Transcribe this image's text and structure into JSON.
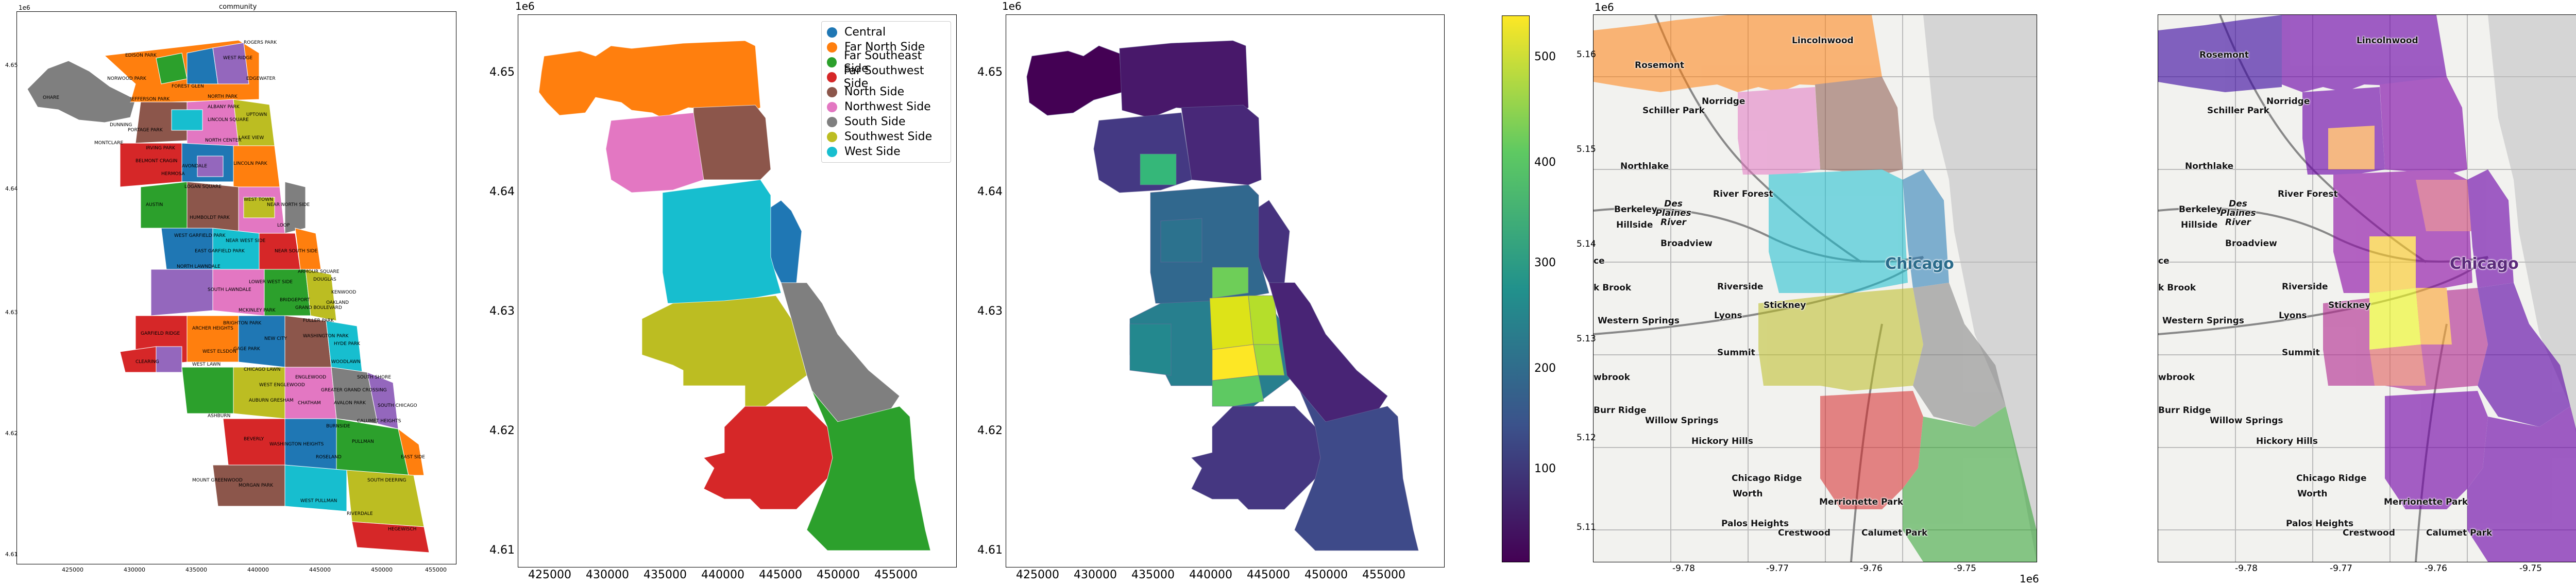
{
  "panel1": {
    "title": "community",
    "y_label": "1e6",
    "yticks": [
      "4.65",
      "4.64",
      "4.63",
      "4.62",
      "4.61"
    ],
    "xticks": [
      "425000",
      "430000",
      "435000",
      "440000",
      "445000",
      "450000",
      "455000"
    ],
    "areas": [
      "ROGERS PARK",
      "WEST RIDGE",
      "EDGEWATER",
      "UPTOWN",
      "LINCOLN SQUARE",
      "NORTH CENTER",
      "LAKE VIEW",
      "LINCOLN PARK",
      "NEAR NORTH SIDE",
      "LOOP",
      "NEAR SOUTH SIDE",
      "NEAR WEST SIDE",
      "WEST TOWN",
      "LOGAN SQUARE",
      "AVONDALE",
      "IRVING PARK",
      "PORTAGE PARK",
      "JEFFERSON PARK",
      "NORWOOD PARK",
      "EDISON PARK",
      "OHARE",
      "FOREST GLEN",
      "NORTH PARK",
      "ALBANY PARK",
      "DUNNING",
      "MONTCLARE",
      "BELMONT CRAGIN",
      "HERMOSA",
      "AUSTIN",
      "HUMBOLDT PARK",
      "WEST GARFIELD PARK",
      "EAST GARFIELD PARK",
      "NORTH LAWNDALE",
      "SOUTH LAWNDALE",
      "LOWER WEST SIDE",
      "BRIDGEPORT",
      "MCKINLEY PARK",
      "ARCHER HEIGHTS",
      "BRIGHTON PARK",
      "GAGE PARK",
      "NEW CITY",
      "FULLER PARK",
      "GRAND BOULEVARD",
      "OAKLAND",
      "KENWOOD",
      "WASHINGTON PARK",
      "HYDE PARK",
      "WOODLAWN",
      "SOUTH SHORE",
      "CHATHAM",
      "AVALON PARK",
      "SOUTH CHICAGO",
      "CALUMET HEIGHTS",
      "BURNSIDE",
      "ROSELAND",
      "PULLMAN",
      "SOUTH DEERING",
      "EAST SIDE",
      "WEST PULLMAN",
      "RIVERDALE",
      "HEGEWISCH",
      "ASHBURN",
      "AUBURN GRESHAM",
      "BEVERLY",
      "MOUNT GREENWOOD",
      "MORGAN PARK",
      "WASHINGTON HEIGHTS",
      "CLEARING",
      "GARFIELD RIDGE",
      "WEST LAWN",
      "CHICAGO LAWN",
      "WEST ENGLEWOOD",
      "ENGLEWOOD",
      "GREATER GRAND CROSSING",
      "ARMOUR SQUARE",
      "DOUGLAS",
      "WEST ELSDON"
    ]
  },
  "panel2": {
    "y_label": "1e6",
    "yticks": [
      "4.65",
      "4.64",
      "4.63",
      "4.62",
      "4.61"
    ],
    "xticks": [
      "425000",
      "430000",
      "435000",
      "440000",
      "445000",
      "450000",
      "455000"
    ],
    "legend": [
      {
        "label": "Central",
        "color": "#1f77b4"
      },
      {
        "label": "Far North Side",
        "color": "#ff7f0e"
      },
      {
        "label": "Far Southeast Side",
        "color": "#2ca02c"
      },
      {
        "label": "Far Southwest Side",
        "color": "#d62728"
      },
      {
        "label": "North Side",
        "color": "#8c564b"
      },
      {
        "label": "Northwest Side",
        "color": "#e377c2"
      },
      {
        "label": "South Side",
        "color": "#7f7f7f"
      },
      {
        "label": "Southwest Side",
        "color": "#bcbd22"
      },
      {
        "label": "West Side",
        "color": "#17becf"
      }
    ]
  },
  "panel3": {
    "y_label": "1e6",
    "yticks": [
      "4.65",
      "4.64",
      "4.63",
      "4.62",
      "4.61"
    ],
    "xticks": [
      "425000",
      "430000",
      "435000",
      "440000",
      "445000",
      "450000",
      "455000"
    ],
    "colorbar_ticks": [
      "500",
      "400",
      "300",
      "200",
      "100"
    ],
    "colorbar_range": [
      30,
      545
    ]
  },
  "panel4": {
    "y_label": "1e6",
    "x_label": "1e6",
    "yticks": [
      "5.16",
      "5.15",
      "5.14",
      "5.13",
      "5.12",
      "5.11"
    ],
    "xticks": [
      "-9.78",
      "-9.77",
      "-9.76",
      "-9.75"
    ],
    "places": [
      "Lincolnwood",
      "Rosemont",
      "Schiller Park",
      "Norridge",
      "Northlake",
      "River Forest",
      "Des Plaines River",
      "Berkeley",
      "Hillside",
      "Broadview",
      "Chicago",
      "Riverside",
      "Lyons",
      "Stickney",
      "Western Springs",
      "Summit",
      "Burr Ridge",
      "Willow Springs",
      "Hickory Hills",
      "Chicago Ridge",
      "Worth",
      "Merrionette Park",
      "Palos Heights",
      "Crestwood",
      "Calumet Park",
      "ce",
      "k Brook",
      "wbrook"
    ]
  },
  "panel5": {
    "x_label": "1e6",
    "xticks": [
      "-9.78",
      "-9.77",
      "-9.76",
      "-9.75"
    ],
    "places": [
      "Lincolnwood",
      "Rosemont",
      "Schiller Park",
      "Norridge",
      "Northlake",
      "River Forest",
      "Des Plaines River",
      "Berkeley",
      "Hillside",
      "Broadview",
      "Chicago",
      "Riverside",
      "Lyons",
      "Stickney",
      "Western Springs",
      "Summit",
      "Burr Ridge",
      "Willow Springs",
      "Hickory Hills",
      "Chicago Ridge",
      "Worth",
      "Merrionette Park",
      "Palos Heights",
      "Crestwood",
      "Calumet Park",
      "ce",
      "k Brook",
      "wbrook"
    ]
  }
}
